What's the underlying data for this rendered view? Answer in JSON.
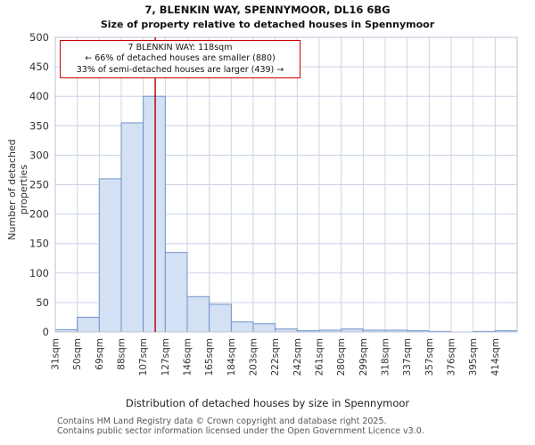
{
  "title": "7, BLENKIN WAY, SPENNYMOOR, DL16 6BG",
  "subtitle": "Size of property relative to detached houses in Spennymoor",
  "annotation": {
    "line1": "7 BLENKIN WAY: 118sqm",
    "line2": "← 66% of detached houses are smaller (880)",
    "line3": "33% of semi-detached houses are larger (439) →"
  },
  "chart_data": {
    "type": "bar",
    "title": "7, BLENKIN WAY, SPENNYMOOR, DL16 6BG",
    "subtitle": "Size of property relative to detached houses in Spennymoor",
    "xlabel": "Distribution of detached houses by size in Spennymoor",
    "ylabel": "Number of detached properties",
    "ylim": [
      0,
      500
    ],
    "ytick_step": 50,
    "yticks": [
      0,
      50,
      100,
      150,
      200,
      250,
      300,
      350,
      400,
      450,
      500
    ],
    "categories": [
      "31sqm",
      "50sqm",
      "69sqm",
      "88sqm",
      "107sqm",
      "127sqm",
      "146sqm",
      "165sqm",
      "184sqm",
      "203sqm",
      "222sqm",
      "242sqm",
      "261sqm",
      "280sqm",
      "299sqm",
      "318sqm",
      "337sqm",
      "357sqm",
      "376sqm",
      "395sqm",
      "414sqm"
    ],
    "values": [
      4,
      25,
      260,
      355,
      400,
      135,
      60,
      47,
      17,
      14,
      5,
      2,
      3,
      5,
      3,
      3,
      2,
      1,
      0,
      1,
      2
    ],
    "bin_start_sqm": 31,
    "bin_width_sqm": 19.15,
    "marker_value_sqm": 118,
    "marker_label": "7 BLENKIN WAY: 118sqm",
    "grid": true,
    "legend": "none",
    "colors": {
      "bar_fill": "#d4e0f3",
      "bar_stroke": "#6e93cb",
      "grid": "#ccd4e6",
      "spine": "#b9c2d4",
      "marker": "#aa0000",
      "annotation_border": "#cc0000",
      "tick_text": "#333333"
    }
  },
  "footer": {
    "line1": "Contains HM Land Registry data © Crown copyright and database right 2025.",
    "line2": "Contains public sector information licensed under the Open Government Licence v3.0."
  }
}
